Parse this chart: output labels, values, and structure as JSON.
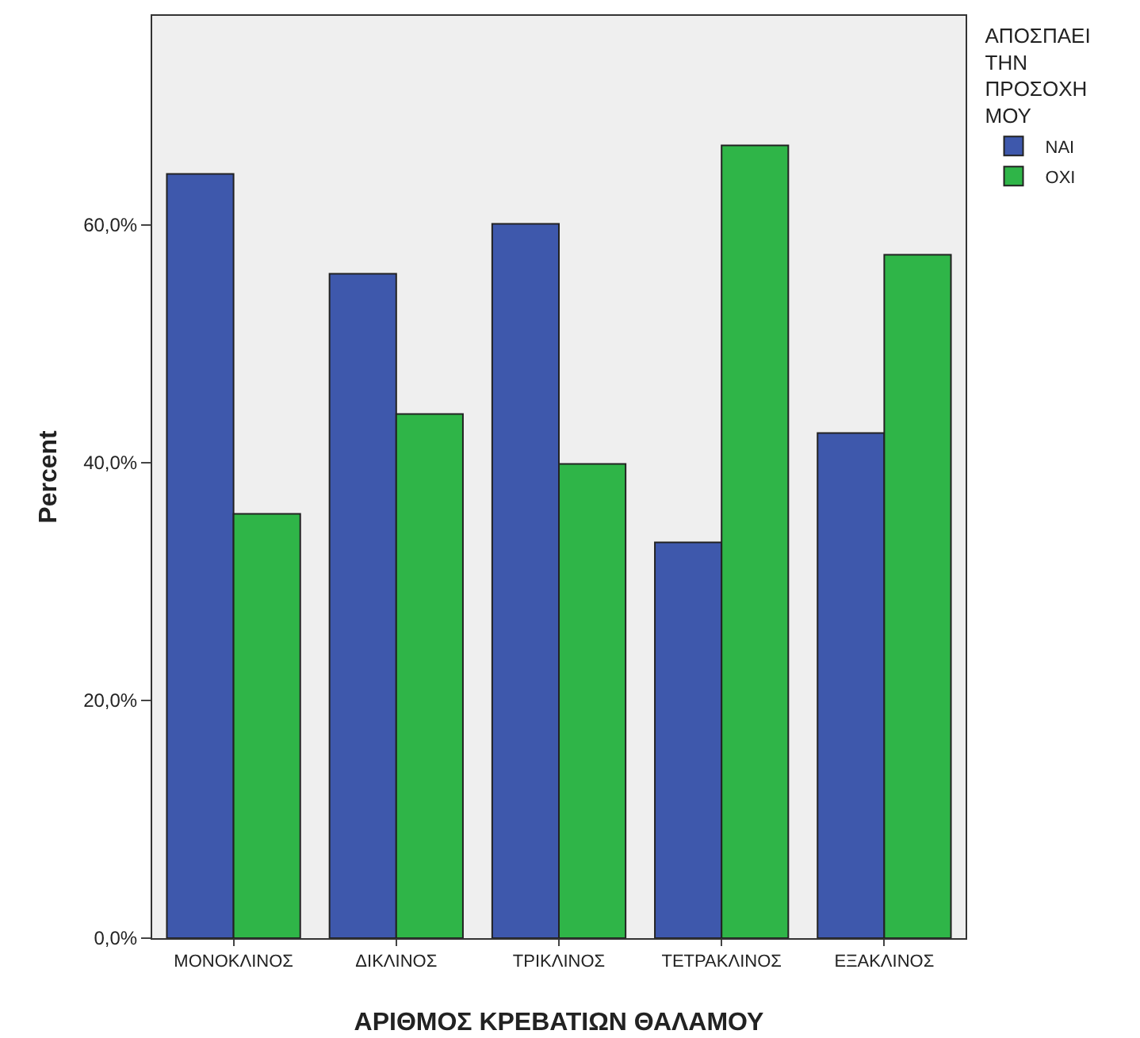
{
  "chart_data": {
    "type": "bar",
    "xlabel": "ΑΡΙΘΜΟΣ ΚΡΕΒΑΤΙΩΝ ΘΑΛΑΜΟΥ",
    "ylabel": "Percent",
    "legend_title": "ΑΠΟΣΠΑΕΙ ΤΗΝ ΠΡΟΣΟΧΗ ΜΟΥ",
    "categories": [
      "ΜΟΝΟΚΛΙΝΟΣ",
      "ΔΙΚΛΙΝΟΣ",
      "ΤΡΙΚΛΙΝΟΣ",
      "ΤΕΤΡΑΚΛΙΝΟΣ",
      "ΕΞΑΚΛΙΝΟΣ"
    ],
    "series": [
      {
        "name": "ΝΑΙ",
        "color": "#3e58ac",
        "values": [
          64.3,
          55.9,
          60.1,
          33.3,
          42.5
        ]
      },
      {
        "name": "ΟΧΙ",
        "color": "#2fb548",
        "values": [
          35.7,
          44.1,
          39.9,
          66.7,
          57.5
        ]
      }
    ],
    "ylim": [
      0,
      77.6
    ],
    "yticks": [
      {
        "value": 0,
        "label": "0,0%"
      },
      {
        "value": 20,
        "label": "20,0%"
      },
      {
        "value": 40,
        "label": "40,0%"
      },
      {
        "value": 60,
        "label": "60,0%"
      }
    ],
    "grid": false,
    "legend": "right"
  }
}
